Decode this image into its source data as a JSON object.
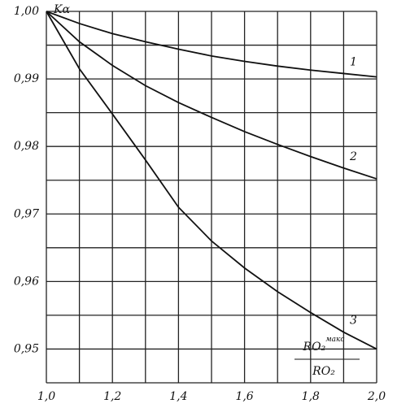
{
  "chart_data": {
    "type": "line",
    "ylabel": "Kα",
    "xlabel_numerator": "RO₂",
    "xlabel_superscript": "макс",
    "xlabel_denominator": "RO₂",
    "x": [
      1.0,
      1.1,
      1.2,
      1.3,
      1.4,
      1.5,
      1.6,
      1.7,
      1.8,
      1.9,
      2.0
    ],
    "series": [
      {
        "name": "1",
        "color": "#111111",
        "values": [
          1.0,
          0.9982,
          0.9967,
          0.9955,
          0.9944,
          0.9934,
          0.9926,
          0.9919,
          0.9913,
          0.9908,
          0.9903
        ]
      },
      {
        "name": "2",
        "color": "#111111",
        "values": [
          1.0,
          0.9955,
          0.992,
          0.989,
          0.9865,
          0.9843,
          0.9822,
          0.9803,
          0.9785,
          0.9768,
          0.9752
        ]
      },
      {
        "name": "3",
        "color": "#111111",
        "values": [
          1.0,
          0.9915,
          0.9848,
          0.978,
          0.971,
          0.966,
          0.962,
          0.9585,
          0.9554,
          0.9525,
          0.95
        ]
      }
    ],
    "xlim": [
      1.0,
      2.0
    ],
    "ylim": [
      0.945,
      1.0
    ],
    "xticks": [
      {
        "value": 1.0,
        "label": "1,0"
      },
      {
        "value": 1.2,
        "label": "1,2"
      },
      {
        "value": 1.4,
        "label": "1,4"
      },
      {
        "value": 1.6,
        "label": "1,6"
      },
      {
        "value": 1.8,
        "label": "1,8"
      },
      {
        "value": 2.0,
        "label": "2,0"
      }
    ],
    "yticks": [
      {
        "value": 1.0,
        "label": "1,00"
      },
      {
        "value": 0.99,
        "label": "0,99"
      },
      {
        "value": 0.98,
        "label": "0,98"
      },
      {
        "value": 0.97,
        "label": "0,97"
      },
      {
        "value": 0.96,
        "label": "0,96"
      },
      {
        "value": 0.95,
        "label": "0,95"
      }
    ],
    "xminor": [
      1.1,
      1.3,
      1.5,
      1.7,
      1.9
    ],
    "yminor": [
      0.995,
      0.985,
      0.975,
      0.965,
      0.955,
      0.945
    ],
    "grid": true
  }
}
